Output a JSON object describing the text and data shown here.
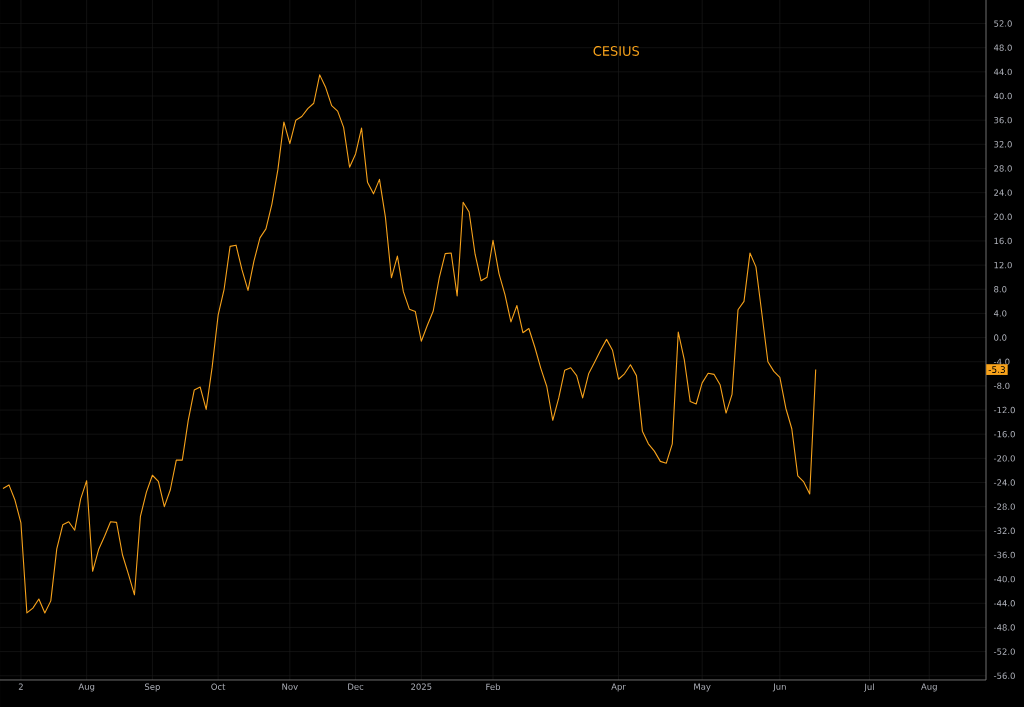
{
  "chart_data": {
    "type": "line",
    "categories": [
      null,
      null,
      null,
      "2",
      null,
      null,
      null,
      null,
      null,
      null,
      null,
      null,
      null,
      null,
      "Aug",
      null,
      null,
      null,
      null,
      null,
      null,
      null,
      null,
      null,
      null,
      "Sep",
      null,
      null,
      null,
      null,
      null,
      null,
      null,
      null,
      null,
      null,
      "Oct",
      null,
      null,
      null,
      null,
      null,
      null,
      null,
      null,
      null,
      null,
      null,
      "Nov",
      null,
      null,
      null,
      null,
      null,
      null,
      null,
      null,
      null,
      null,
      "Dec",
      null,
      null,
      null,
      null,
      null,
      null,
      null,
      null,
      null,
      null,
      "2025",
      null,
      null,
      null,
      null,
      null,
      null,
      null,
      null,
      null,
      null,
      null,
      "Feb",
      null,
      null,
      null,
      null,
      null,
      null,
      null,
      null,
      null,
      null,
      null,
      null,
      null,
      null,
      null,
      null,
      null,
      null,
      null,
      null,
      "Apr",
      null,
      null,
      null,
      null,
      null,
      null,
      null,
      null,
      null,
      null,
      null,
      null,
      null,
      "May",
      null,
      null,
      null,
      null,
      null,
      null,
      null,
      null,
      null,
      null,
      null,
      null,
      "Jun",
      null,
      null,
      null,
      null,
      null,
      null,
      null,
      null,
      null,
      null,
      null,
      null,
      null,
      null,
      "Jul",
      null,
      null,
      null,
      null,
      null,
      null,
      null,
      null,
      null,
      "Aug",
      null,
      null,
      null,
      null,
      null,
      null,
      null,
      null,
      null
    ],
    "series": [
      {
        "name": "CESIUS",
        "color": "#f7a21b",
        "values": [
          -25.0,
          -24.4,
          -26.9,
          -30.7,
          -45.6,
          -44.8,
          -43.3,
          -45.6,
          -43.6,
          -35.0,
          -31.0,
          -30.5,
          -31.9,
          -26.7,
          -23.7,
          -38.7,
          -35.1,
          -32.9,
          -30.5,
          -30.6,
          -36.0,
          -39.2,
          -42.6,
          -29.6,
          -25.6,
          -22.8,
          -23.8,
          -28.0,
          -25.2,
          -20.3,
          -20.3,
          -13.7,
          -8.7,
          -8.2,
          -11.9,
          -4.9,
          3.7,
          8.0,
          15.1,
          15.3,
          11.2,
          7.8,
          12.7,
          16.5,
          18.0,
          22.1,
          27.8,
          35.7,
          32.1,
          36.0,
          36.6,
          37.9,
          38.8,
          43.5,
          41.4,
          38.4,
          37.5,
          34.8,
          28.2,
          30.4,
          34.7,
          25.7,
          23.8,
          26.2,
          19.9,
          9.9,
          13.5,
          7.6,
          4.7,
          4.3,
          -0.6,
          2.0,
          4.4,
          9.9,
          13.9,
          14.0,
          6.9,
          22.4,
          20.8,
          13.8,
          9.4,
          10.0,
          16.1,
          10.6,
          7.1,
          2.6,
          5.3,
          0.8,
          1.5,
          -1.6,
          -5.1,
          -8.1,
          -13.7,
          -10.0,
          -5.4,
          -5.0,
          -6.3,
          -10.0,
          -6.0,
          -4.1,
          -2.1,
          -0.3,
          -2.1,
          -6.9,
          -6.0,
          -4.5,
          -6.3,
          -15.5,
          -17.6,
          -18.8,
          -20.5,
          -20.8,
          -17.6,
          0.9,
          -3.6,
          -10.6,
          -11.0,
          -7.5,
          -5.9,
          -6.1,
          -7.8,
          -12.5,
          -9.4,
          4.6,
          6.0,
          14.0,
          11.7,
          3.9,
          -4.0,
          -5.6,
          -6.6,
          -11.7,
          -15.1,
          -22.9,
          -23.9,
          -25.9,
          -5.3,
          null,
          null,
          null,
          null,
          null,
          null,
          null,
          null,
          null,
          null,
          null,
          null,
          null,
          null,
          null,
          null,
          null,
          null,
          null,
          null,
          null,
          null,
          null,
          null,
          null,
          null,
          null,
          null
        ]
      }
    ],
    "ylim": [
      -56.7,
      55.9
    ],
    "yticks": [
      {
        "value": 52,
        "label": "52.0"
      },
      {
        "value": 48,
        "label": "48.0"
      },
      {
        "value": 44,
        "label": "44.0"
      },
      {
        "value": 40,
        "label": "40.0"
      },
      {
        "value": 36,
        "label": "36.0"
      },
      {
        "value": 32,
        "label": "32.0"
      },
      {
        "value": 28,
        "label": "28.0"
      },
      {
        "value": 24,
        "label": "24.0"
      },
      {
        "value": 20,
        "label": "20.0"
      },
      {
        "value": 16,
        "label": "16.0"
      },
      {
        "value": 12,
        "label": "12.0"
      },
      {
        "value": 8,
        "label": "8.0"
      },
      {
        "value": 4,
        "label": "4.0"
      },
      {
        "value": 0,
        "label": "0.0"
      },
      {
        "value": -4,
        "label": "-4.0"
      },
      {
        "value": -8,
        "label": "-8.0"
      },
      {
        "value": -12,
        "label": "-12.0"
      },
      {
        "value": -16,
        "label": "-16.0"
      },
      {
        "value": -20,
        "label": "-20.0"
      },
      {
        "value": -24,
        "label": "-24.0"
      },
      {
        "value": -28,
        "label": "-28.0"
      },
      {
        "value": -32,
        "label": "-32.0"
      },
      {
        "value": -36,
        "label": "-36.0"
      },
      {
        "value": -40,
        "label": "-40.0"
      },
      {
        "value": -44,
        "label": "-44.0"
      },
      {
        "value": -48,
        "label": "-48.0"
      },
      {
        "value": -52,
        "label": "-52.0"
      },
      {
        "value": -56,
        "label": "-56.0"
      }
    ],
    "grid": true,
    "annotations": [
      "-5.3"
    ]
  }
}
